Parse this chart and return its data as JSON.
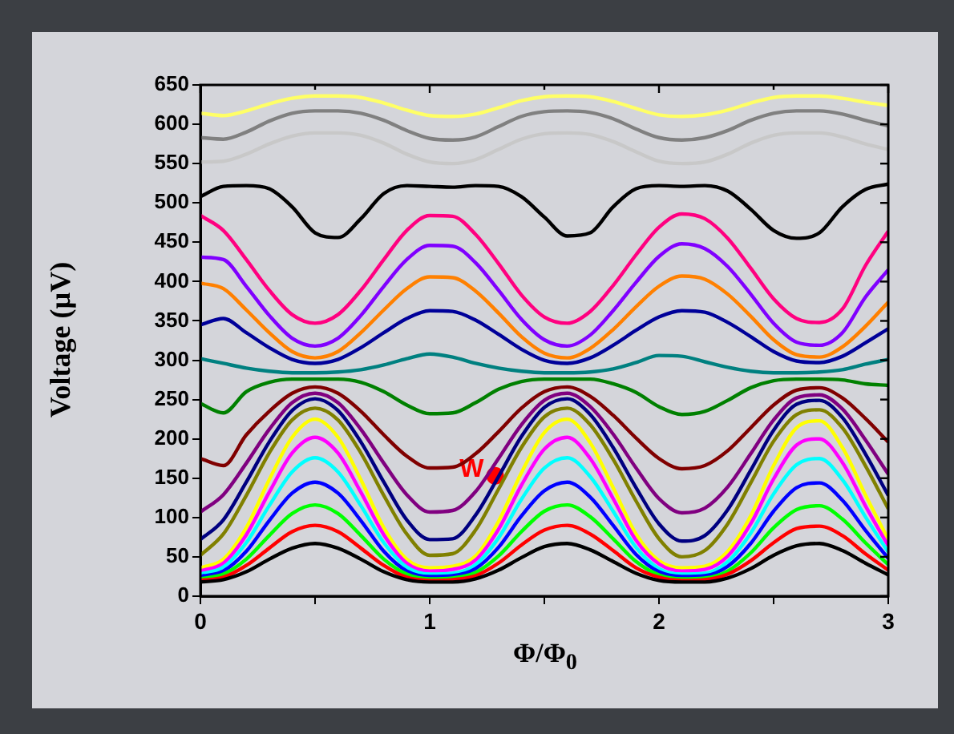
{
  "chart_data": {
    "type": "line",
    "xlabel": "Φ/Φ$_{0}$",
    "ylabel": "Voltage (µV)",
    "x": [
      0,
      0.1,
      0.2,
      0.3,
      0.4,
      0.5,
      0.6,
      0.7,
      0.8,
      0.9,
      1.0,
      1.1,
      1.2,
      1.3,
      1.4,
      1.5,
      1.6,
      1.7,
      1.8,
      1.9,
      2.0,
      2.1,
      2.2,
      2.3,
      2.4,
      2.5,
      2.6,
      2.7,
      2.8,
      2.9,
      3.0
    ],
    "xlim": [
      0,
      3
    ],
    "xticks": [
      0,
      {
        "value": 0.5,
        "label": null
      },
      1,
      {
        "value": 1.5,
        "label": null
      },
      2,
      {
        "value": 2.5,
        "label": null
      },
      3
    ],
    "ylim": [
      0,
      650
    ],
    "yticks": [
      0,
      50,
      100,
      150,
      200,
      250,
      300,
      350,
      400,
      450,
      500,
      550,
      600,
      650
    ],
    "grid": false,
    "legend": false,
    "marker": "none",
    "line_style": "solid",
    "annotations": [
      {
        "text": "W",
        "x": 1.285,
        "y": 153
      }
    ],
    "series": [
      {
        "color": "#000000",
        "values": [
          18,
          21,
          31,
          47,
          61,
          67,
          61,
          47,
          31,
          21,
          18,
          18,
          22,
          33,
          49,
          63,
          67,
          59,
          44,
          29,
          20,
          18,
          18,
          23,
          35,
          52,
          64,
          67,
          58,
          42,
          27
        ]
      },
      {
        "color": "#ff0000",
        "values": [
          20,
          24,
          39,
          61,
          82,
          90,
          82,
          61,
          39,
          24,
          20,
          21,
          26,
          42,
          65,
          84,
          90,
          79,
          58,
          36,
          24,
          20,
          21,
          28,
          45,
          68,
          86,
          89,
          77,
          54,
          33
        ]
      },
      {
        "color": "#00ff00",
        "values": [
          22,
          28,
          47,
          77,
          105,
          116,
          105,
          77,
          47,
          28,
          22,
          23,
          30,
          51,
          82,
          108,
          116,
          101,
          73,
          44,
          27,
          22,
          23,
          32,
          55,
          87,
          110,
          115,
          98,
          68,
          40
        ]
      },
      {
        "color": "#0000ff",
        "values": [
          25,
          32,
          57,
          96,
          131,
          145,
          131,
          96,
          57,
          32,
          25,
          26,
          35,
          62,
          102,
          134,
          145,
          126,
          90,
          53,
          31,
          25,
          26,
          38,
          67,
          108,
          138,
          144,
          122,
          84,
          48
        ]
      },
      {
        "color": "#00ffff",
        "values": [
          28,
          37,
          68,
          115,
          158,
          176,
          158,
          115,
          68,
          37,
          28,
          29,
          40,
          74,
          123,
          163,
          176,
          152,
          108,
          62,
          35,
          28,
          29,
          44,
          80,
          130,
          167,
          175,
          148,
          101,
          56
        ]
      },
      {
        "color": "#ff00ff",
        "values": [
          32,
          42,
          78,
          132,
          182,
          202,
          182,
          132,
          78,
          42,
          32,
          34,
          46,
          85,
          141,
          187,
          202,
          175,
          124,
          71,
          41,
          32,
          34,
          51,
          92,
          149,
          192,
          200,
          170,
          115,
          64
        ]
      },
      {
        "color": "#ffff00",
        "values": [
          36,
          47,
          87,
          148,
          202,
          225,
          202,
          148,
          87,
          47,
          36,
          38,
          51,
          95,
          157,
          208,
          225,
          195,
          138,
          79,
          45,
          36,
          38,
          57,
          102,
          166,
          214,
          223,
          189,
          129,
          72
        ]
      },
      {
        "color": "#808000",
        "values": [
          52,
          79,
          128,
          182,
          224,
          239,
          224,
          182,
          128,
          79,
          52,
          54,
          84,
          136,
          189,
          228,
          239,
          218,
          174,
          121,
          73,
          50,
          58,
          92,
          144,
          197,
          231,
          237,
          214,
          166,
          111
        ]
      },
      {
        "color": "#000080",
        "values": [
          72,
          97,
          145,
          196,
          236,
          251,
          236,
          196,
          145,
          97,
          72,
          73,
          103,
          152,
          203,
          240,
          251,
          231,
          189,
          138,
          92,
          70,
          77,
          110,
          160,
          211,
          244,
          249,
          227,
          181,
          128
        ]
      },
      {
        "color": "#800080",
        "values": [
          107,
          129,
          169,
          212,
          246,
          258,
          246,
          212,
          169,
          129,
          107,
          109,
          133,
          175,
          218,
          249,
          258,
          241,
          206,
          163,
          124,
          106,
          112,
          139,
          181,
          224,
          252,
          256,
          238,
          199,
          155
        ]
      },
      {
        "color": "#800000",
        "values": [
          175,
          166,
          205,
          235,
          258,
          266,
          258,
          235,
          205,
          178,
          163,
          164,
          181,
          209,
          239,
          260,
          266,
          254,
          230,
          201,
          175,
          162,
          166,
          185,
          214,
          243,
          262,
          265,
          252,
          226,
          196
        ]
      },
      {
        "color": "#008000",
        "values": [
          245,
          233,
          260,
          272,
          276,
          276,
          276,
          272,
          260,
          243,
          232,
          233,
          246,
          263,
          273,
          276,
          276,
          276,
          270,
          259,
          241,
          231,
          235,
          249,
          265,
          274,
          276,
          276,
          275,
          270,
          268
        ]
      },
      {
        "color": "#008080",
        "values": [
          302,
          296,
          290,
          286,
          284,
          284,
          285,
          288,
          294,
          302,
          308,
          304,
          296,
          290,
          286,
          284,
          284,
          285,
          289,
          297,
          306,
          305,
          298,
          291,
          286,
          284,
          284,
          285,
          288,
          295,
          301
        ]
      },
      {
        "color": "#000099",
        "values": [
          345,
          353,
          335,
          316,
          301,
          296,
          301,
          316,
          335,
          353,
          363,
          362,
          351,
          333,
          314,
          300,
          296,
          303,
          319,
          338,
          355,
          363,
          361,
          348,
          330,
          311,
          299,
          297,
          305,
          322,
          340
        ]
      },
      {
        "color": "#ff8000",
        "values": [
          398,
          391,
          364,
          335,
          311,
          303,
          311,
          335,
          364,
          391,
          406,
          405,
          388,
          360,
          330,
          309,
          303,
          315,
          339,
          368,
          394,
          407,
          403,
          384,
          356,
          326,
          307,
          304,
          317,
          343,
          374
        ]
      },
      {
        "color": "#8000ff",
        "values": [
          431,
          428,
          394,
          357,
          328,
          318,
          328,
          357,
          394,
          428,
          446,
          445,
          424,
          389,
          352,
          326,
          318,
          332,
          363,
          399,
          432,
          448,
          442,
          419,
          384,
          347,
          323,
          319,
          335,
          380,
          415
        ]
      },
      {
        "color": "#ff0080",
        "values": [
          484,
          465,
          428,
          389,
          358,
          347,
          358,
          389,
          428,
          465,
          484,
          483,
          460,
          423,
          383,
          355,
          347,
          362,
          395,
          434,
          469,
          486,
          480,
          455,
          417,
          378,
          353,
          348,
          365,
          420,
          464
        ]
      },
      {
        "color": "#000000",
        "values": [
          508,
          521,
          522,
          518,
          495,
          462,
          456,
          480,
          512,
          522,
          521,
          520,
          522,
          521,
          508,
          482,
          458,
          462,
          495,
          518,
          522,
          521,
          522,
          515,
          492,
          465,
          455,
          462,
          495,
          517,
          524
        ]
      },
      {
        "color": "#c8c8c8",
        "values": [
          552,
          553,
          562,
          575,
          585,
          589,
          589,
          586,
          576,
          562,
          552,
          550,
          555,
          568,
          581,
          588,
          589,
          587,
          578,
          565,
          553,
          550,
          552,
          562,
          576,
          586,
          589,
          589,
          584,
          575,
          568
        ]
      },
      {
        "color": "#808080",
        "values": [
          583,
          581,
          590,
          604,
          614,
          617,
          617,
          614,
          605,
          592,
          582,
          580,
          584,
          597,
          610,
          616,
          617,
          615,
          607,
          594,
          583,
          580,
          583,
          592,
          605,
          614,
          617,
          617,
          613,
          605,
          598
        ]
      },
      {
        "color": "#ffff66",
        "values": [
          614,
          611,
          617,
          626,
          633,
          636,
          636,
          634,
          627,
          618,
          611,
          610,
          613,
          621,
          630,
          635,
          636,
          635,
          629,
          620,
          612,
          610,
          612,
          618,
          627,
          634,
          636,
          636,
          633,
          628,
          624
        ]
      }
    ]
  }
}
